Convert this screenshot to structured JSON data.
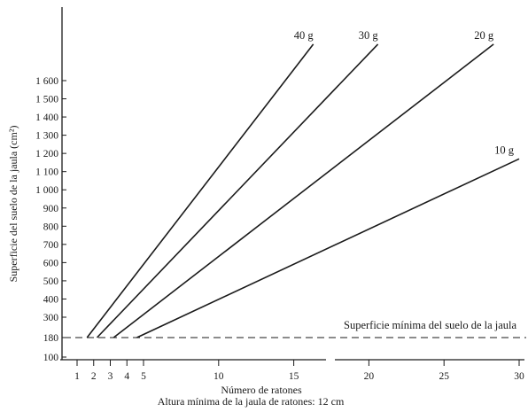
{
  "chart_data": {
    "type": "line",
    "title": "",
    "xlabel": "Número de ratones",
    "subtitle": "Altura mínima de la jaula de ratones: 12 cm",
    "ylabel": "Superficie del suelo de la jaula (cm²)",
    "xlim": [
      0,
      30
    ],
    "ylim": [
      100,
      1800
    ],
    "x_ticks": [
      1,
      2,
      3,
      4,
      5,
      10,
      15,
      20,
      25,
      30
    ],
    "y_ticks": [
      100,
      180,
      300,
      400,
      500,
      600,
      700,
      800,
      900,
      1000,
      1100,
      1200,
      1300,
      1400,
      1500,
      1600
    ],
    "y_tick_labels": [
      "100",
      "180",
      "300",
      "400",
      "500",
      "600",
      "700",
      "800",
      "900",
      "1 000",
      "1 100",
      "1 200",
      "1 300",
      "1 400",
      "1 500",
      "1 600"
    ],
    "series": [
      {
        "name": "40 g",
        "x": [
          1.6,
          16.3
        ],
        "y": [
          180,
          1800
        ]
      },
      {
        "name": "30 g",
        "x": [
          2.2,
          20.6
        ],
        "y": [
          180,
          1800
        ]
      },
      {
        "name": "20 g",
        "x": [
          3.2,
          28.3
        ],
        "y": [
          180,
          1800
        ]
      },
      {
        "name": "10 g",
        "x": [
          4.6,
          30
        ],
        "y": [
          180,
          1170
        ]
      }
    ],
    "reference_line": {
      "y": 180,
      "style": "dashed",
      "label": "Superficie mínima del suelo de la jaula"
    },
    "grid": false,
    "legend": "series labelled at line ends"
  }
}
